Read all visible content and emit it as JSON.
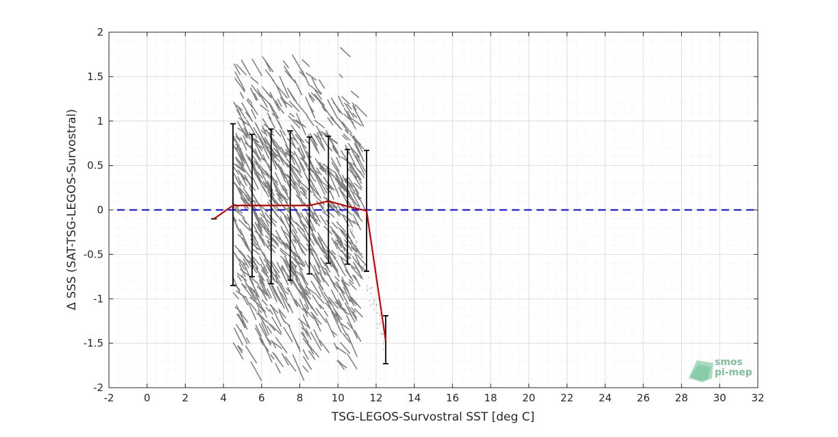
{
  "chart_data": {
    "type": "scatter",
    "xlabel": "TSG-LEGOS-Survostral SST [deg C]",
    "ylabel": "Δ SSS (SAT-TSG-LEGOS-Survostral)",
    "xlim": [
      -2,
      32
    ],
    "ylim": [
      -2,
      2
    ],
    "xticks": [
      -2,
      0,
      2,
      4,
      6,
      8,
      10,
      12,
      14,
      16,
      18,
      20,
      22,
      24,
      26,
      28,
      30,
      32
    ],
    "yticks": [
      -2,
      -1.5,
      -1,
      -0.5,
      0,
      0.5,
      1,
      1.5,
      2
    ],
    "grid": true,
    "reference_line": {
      "y": 0,
      "style": "dashed",
      "color": "#0000ff"
    },
    "scatter": {
      "color": "#808080",
      "x_range": [
        4.5,
        12.5
      ],
      "y_range": [
        -1.9,
        1.9
      ],
      "description_points": "dense cloud of short streaks"
    },
    "mean_line": {
      "color": "#cc0000",
      "x": [
        3.5,
        4.5,
        5.5,
        6.5,
        7.5,
        8.5,
        9.5,
        10.5,
        11.5,
        12.5
      ],
      "y": [
        -0.1,
        0.05,
        0.05,
        0.05,
        0.05,
        0.05,
        0.1,
        0.04,
        -0.01,
        -1.47
      ]
    },
    "error_bars": [
      {
        "x": 3.5,
        "low": -0.1,
        "high": -0.1
      },
      {
        "x": 4.5,
        "low": -0.85,
        "high": 0.97
      },
      {
        "x": 5.5,
        "low": -0.75,
        "high": 0.85
      },
      {
        "x": 6.5,
        "low": -0.83,
        "high": 0.91
      },
      {
        "x": 7.5,
        "low": -0.79,
        "high": 0.89
      },
      {
        "x": 8.5,
        "low": -0.72,
        "high": 0.82
      },
      {
        "x": 9.5,
        "low": -0.6,
        "high": 0.83
      },
      {
        "x": 10.5,
        "low": -0.61,
        "high": 0.68
      },
      {
        "x": 11.5,
        "low": -0.69,
        "high": 0.67
      },
      {
        "x": 12.5,
        "low": -1.73,
        "high": -1.19
      }
    ]
  },
  "logo": {
    "line1": "smos",
    "line2": "pi-mep"
  }
}
